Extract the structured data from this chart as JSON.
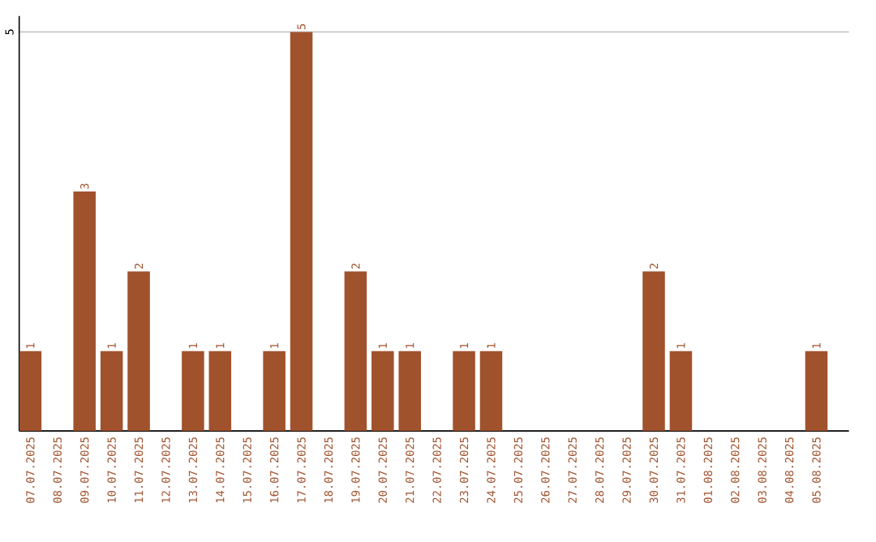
{
  "chart_data": {
    "type": "bar",
    "categories": [
      "07.07.2025",
      "08.07.2025",
      "09.07.2025",
      "10.07.2025",
      "11.07.2025",
      "12.07.2025",
      "13.07.2025",
      "14.07.2025",
      "15.07.2025",
      "16.07.2025",
      "17.07.2025",
      "18.07.2025",
      "19.07.2025",
      "20.07.2025",
      "21.07.2025",
      "22.07.2025",
      "23.07.2025",
      "24.07.2025",
      "25.07.2025",
      "26.07.2025",
      "27.07.2025",
      "28.07.2025",
      "29.07.2025",
      "30.07.2025",
      "31.07.2025",
      "01.08.2025",
      "02.08.2025",
      "03.08.2025",
      "04.08.2025",
      "05.08.2025"
    ],
    "values": [
      1,
      0,
      3,
      1,
      2,
      0,
      1,
      1,
      0,
      1,
      5,
      0,
      2,
      1,
      1,
      0,
      1,
      1,
      0,
      0,
      0,
      0,
      0,
      2,
      1,
      0,
      0,
      0,
      0,
      1
    ],
    "value_labels": [
      "1",
      null,
      "3",
      "1",
      "2",
      null,
      "1",
      "1",
      null,
      "1",
      "5",
      null,
      "2",
      "1",
      "1",
      null,
      "1",
      "1",
      null,
      null,
      null,
      null,
      null,
      "2",
      "1",
      null,
      null,
      null,
      null,
      "1"
    ],
    "color": "#a0522d",
    "ylim": [
      0,
      5.2
    ],
    "yticks": [
      5
    ],
    "grid": "y"
  }
}
